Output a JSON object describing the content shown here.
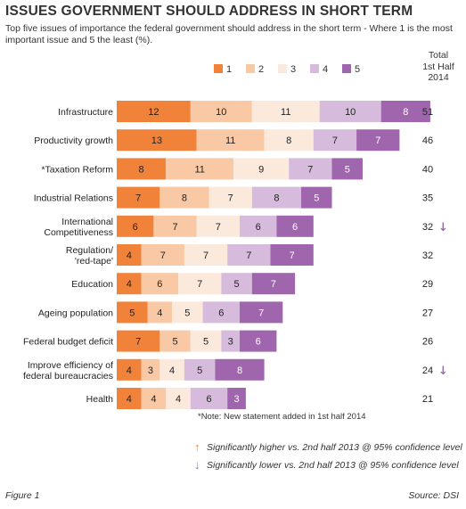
{
  "title": "ISSUES GOVERNMENT SHOULD ADDRESS IN SHORT TERM",
  "subtitle": "Top five issues of importance the federal government should address in the short term - Where 1 is the most important issue and 5 the least (%).",
  "total_header": "Total\n1st Half\n2014",
  "note": "*Note: New statement added in 1st half 2014",
  "significance": {
    "higher": "Significantly higher vs. 2nd half 2013 @ 95% confidence level",
    "lower": "Significantly lower vs. 2nd half 2013 @ 95% confidence level",
    "higher_icon": "arrow-up-icon",
    "lower_icon": "arrow-down-icon",
    "higher_color": "#f0823a",
    "lower_color": "#9b6aac"
  },
  "footer": {
    "figure": "Figure 1",
    "source": "Source: DSI"
  },
  "chart_data": {
    "type": "bar",
    "stacked": true,
    "orientation": "horizontal",
    "categories": [
      "Infrastructure",
      "Productivity growth",
      "*Taxation Reform",
      "Industrial Relations",
      "International Competitiveness",
      "Regulation/ 'red-tape'",
      "Education",
      "Ageing population",
      "Federal budget deficit",
      "Improve efficiency of federal bureaucracies",
      "Health"
    ],
    "series": [
      {
        "name": "1",
        "color": "#f0823a",
        "values": [
          12,
          13,
          8,
          7,
          6,
          4,
          4,
          5,
          7,
          4,
          4
        ]
      },
      {
        "name": "2",
        "color": "#f9c8a4",
        "values": [
          10,
          11,
          11,
          8,
          7,
          7,
          6,
          4,
          5,
          3,
          4
        ]
      },
      {
        "name": "3",
        "color": "#fbe9dc",
        "values": [
          11,
          8,
          9,
          7,
          7,
          7,
          7,
          5,
          5,
          4,
          4
        ]
      },
      {
        "name": "4",
        "color": "#d6bbdc",
        "values": [
          10,
          7,
          7,
          8,
          6,
          7,
          5,
          6,
          3,
          5,
          6
        ]
      },
      {
        "name": "5",
        "color": "#a066ad",
        "values": [
          8,
          7,
          5,
          5,
          6,
          7,
          7,
          7,
          6,
          8,
          3
        ]
      }
    ],
    "totals": [
      51,
      46,
      40,
      35,
      32,
      32,
      29,
      27,
      26,
      24,
      21
    ],
    "significance": [
      "",
      "",
      "",
      "",
      "lower",
      "",
      "",
      "",
      "",
      "lower",
      ""
    ],
    "legend_position": "top",
    "grid": false
  }
}
